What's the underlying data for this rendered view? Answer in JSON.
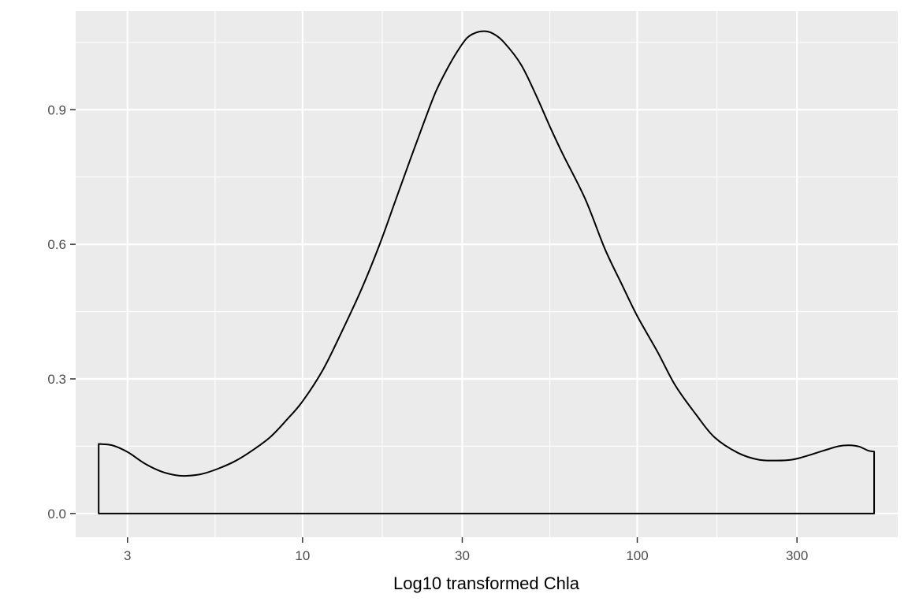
{
  "chart_data": {
    "type": "area",
    "xlabel": "Log10 transformed Chla",
    "ylabel": "",
    "x_scale": "log10",
    "xlim": [
      2.1,
      600
    ],
    "ylim": [
      -0.053,
      1.12
    ],
    "x_ticks": [
      3,
      10,
      30,
      100,
      300
    ],
    "x_tick_labels": [
      "3",
      "10",
      "30",
      "100",
      "300"
    ],
    "x_minor_ticks": [
      5.48,
      17.3,
      54.8,
      173
    ],
    "y_ticks": [
      0.0,
      0.3,
      0.6,
      0.9
    ],
    "y_tick_labels": [
      "0.0",
      "0.3",
      "0.6",
      "0.9"
    ],
    "y_minor_ticks": [
      0.15,
      0.45,
      0.75,
      1.05
    ],
    "grid": true,
    "legend": "none",
    "colors": {
      "panel_background": "#ebebeb",
      "grid_line": "#ffffff",
      "curve": "#000000",
      "fill": "none",
      "tick_label": "#4d4d4d",
      "axis_title": "#000000"
    },
    "series": [
      {
        "x": [
          2.46,
          2.7,
          3.0,
          3.4,
          3.8,
          4.2,
          4.5,
          5.0,
          5.6,
          6.3,
          7.0,
          8.0,
          9.0,
          10.0,
          11.5,
          13.0,
          15.0,
          17.0,
          19.0,
          21.0,
          23.0,
          25.0,
          27.0,
          29.0,
          31.0,
          33.0,
          35.0,
          37.0,
          40.0,
          45.0,
          50.0,
          55.0,
          60.0,
          70.0,
          80.0,
          90.0,
          100.0,
          115.0,
          130.0,
          150.0,
          170.0,
          200.0,
          230.0,
          260.0,
          290.0,
          320.0,
          360.0,
          400.0,
          430.0,
          460.0,
          490.0,
          510.0
        ],
        "y": [
          0.155,
          0.152,
          0.137,
          0.11,
          0.093,
          0.085,
          0.084,
          0.088,
          0.1,
          0.117,
          0.138,
          0.17,
          0.21,
          0.25,
          0.32,
          0.4,
          0.5,
          0.6,
          0.7,
          0.79,
          0.87,
          0.94,
          0.99,
          1.03,
          1.06,
          1.072,
          1.075,
          1.07,
          1.05,
          1.0,
          0.93,
          0.86,
          0.8,
          0.7,
          0.59,
          0.51,
          0.44,
          0.36,
          0.285,
          0.22,
          0.17,
          0.135,
          0.12,
          0.118,
          0.12,
          0.128,
          0.14,
          0.15,
          0.152,
          0.149,
          0.14,
          0.138
        ]
      }
    ]
  }
}
